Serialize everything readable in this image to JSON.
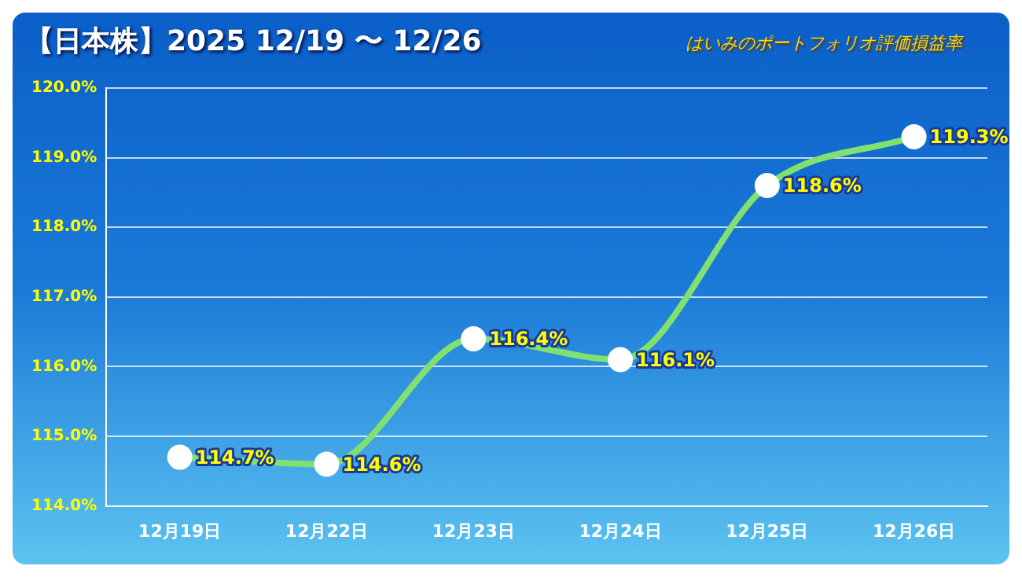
{
  "chart_data": {
    "type": "line",
    "title": "【日本株】2025 12/19 〜 12/26",
    "subtitle": "はいみのポートフォリオ評価損益率",
    "categories": [
      "12月19日",
      "12月22日",
      "12月23日",
      "12月24日",
      "12月25日",
      "12月26日"
    ],
    "series": [
      {
        "color": "#80e070",
        "values": [
          114.7,
          114.6,
          116.4,
          116.1,
          118.6,
          119.3
        ],
        "value_labels": [
          "114.7%",
          "114.6%",
          "116.4%",
          "116.1%",
          "118.6%",
          "119.3%"
        ]
      }
    ],
    "ylim": [
      114,
      120
    ],
    "yticks": [
      {
        "value": 114,
        "label": "114.0%"
      },
      {
        "value": 115,
        "label": "115.0%"
      },
      {
        "value": 116,
        "label": "116.0%"
      },
      {
        "value": 117,
        "label": "117.0%"
      },
      {
        "value": 118,
        "label": "118.0%"
      },
      {
        "value": 119,
        "label": "119.0%"
      },
      {
        "value": 120,
        "label": "120.0%"
      }
    ],
    "grid": "y",
    "legend": false,
    "marker": "circle",
    "line_style": "solid"
  }
}
